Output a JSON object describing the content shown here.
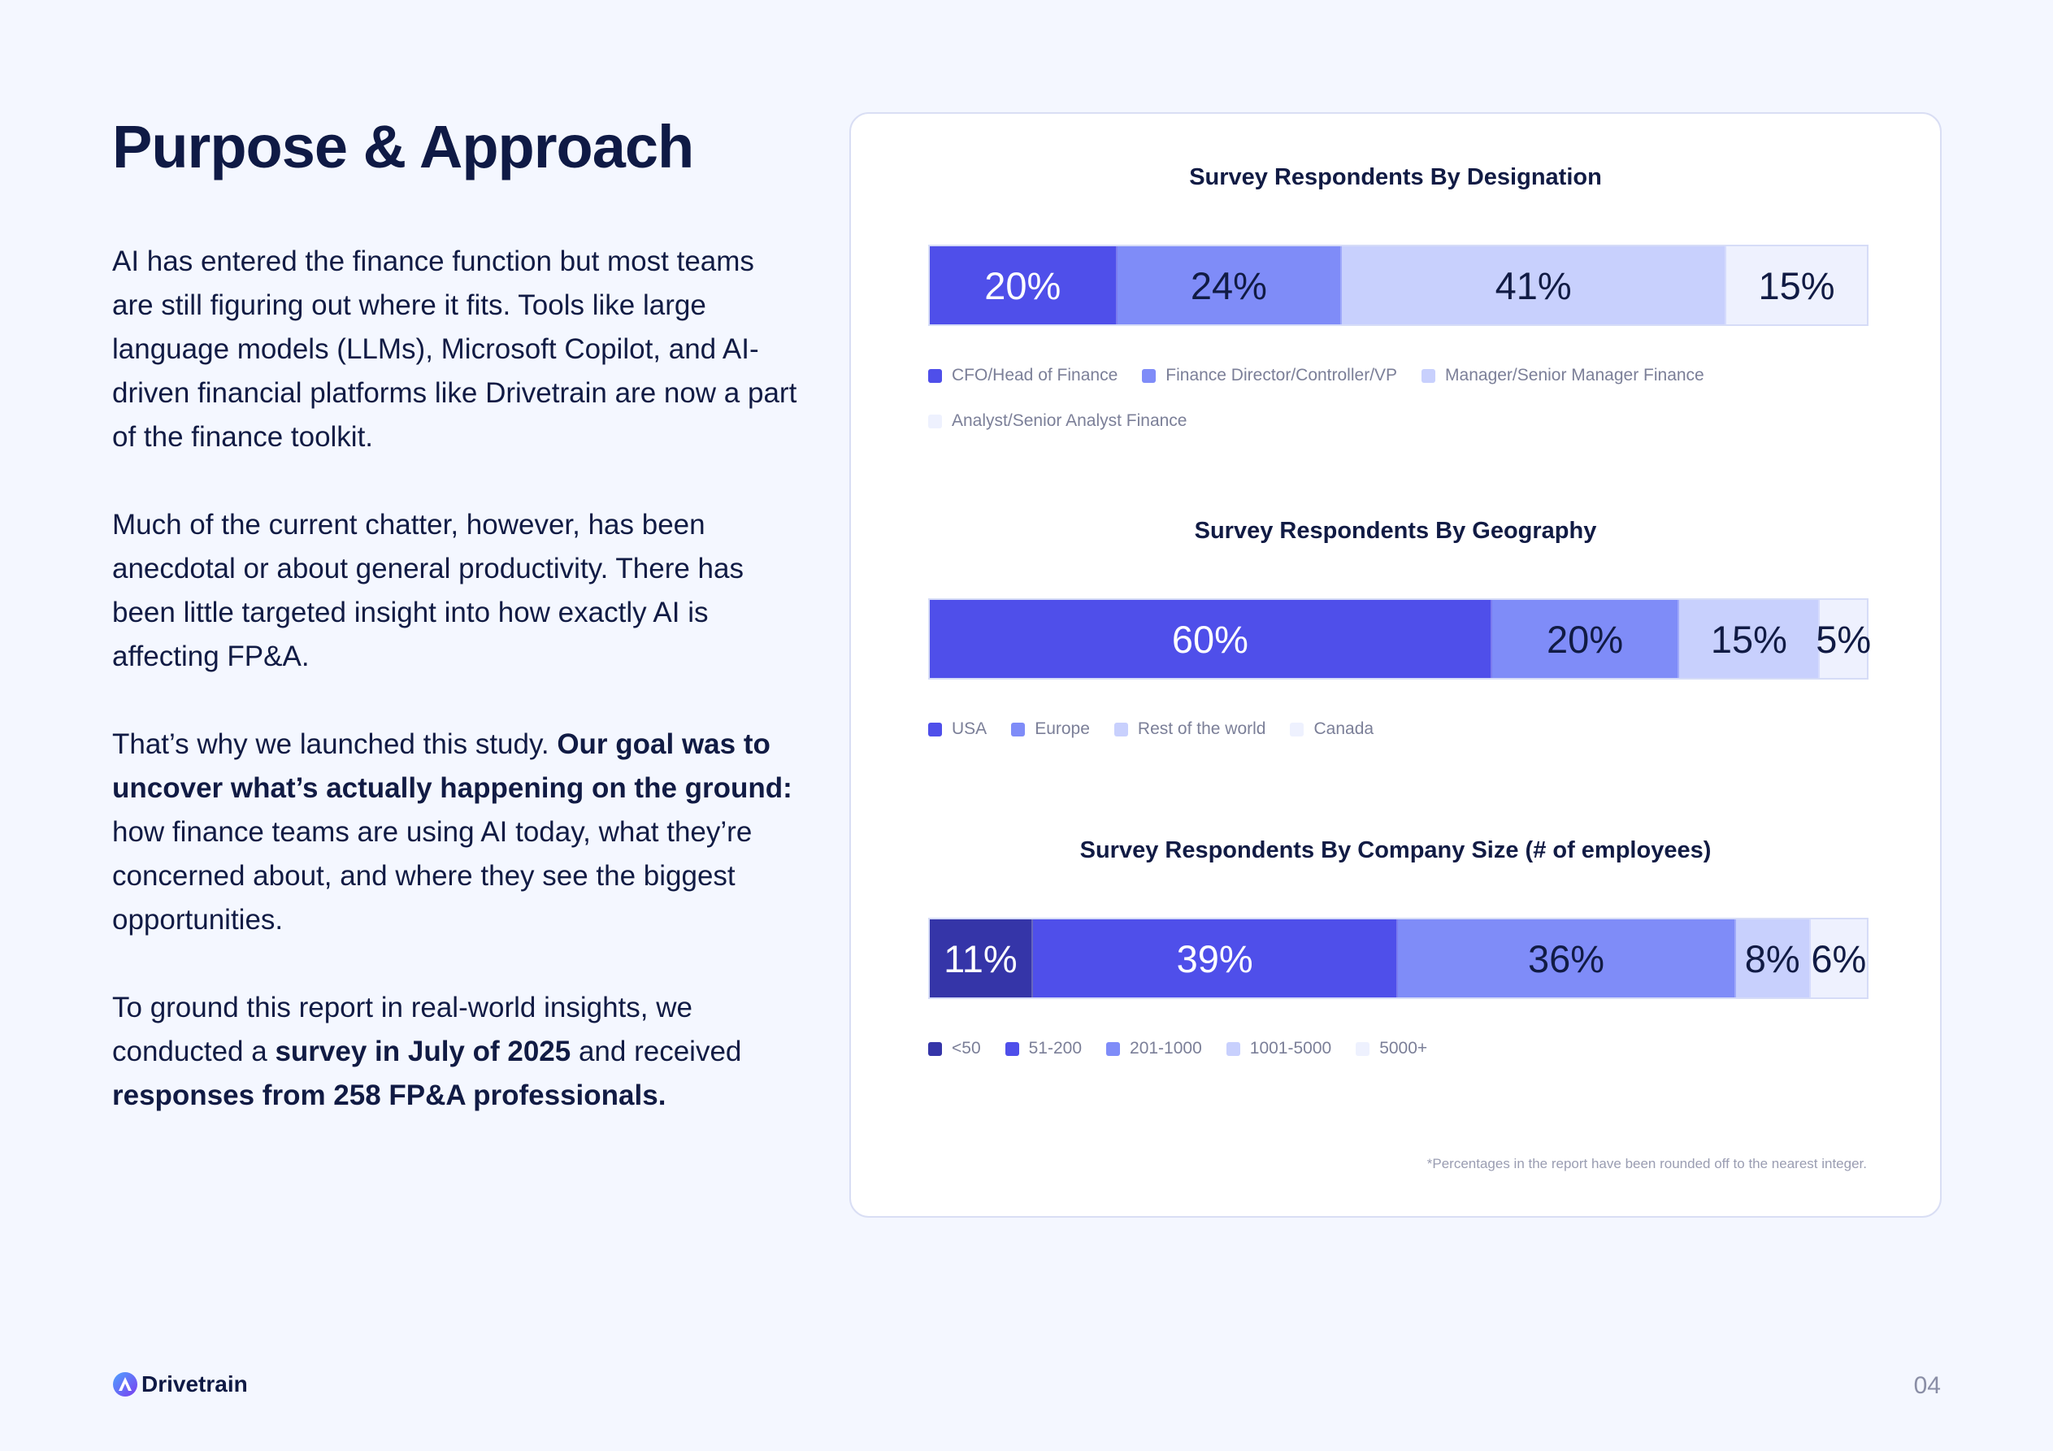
{
  "page": {
    "title": "Purpose & Approach",
    "paragraphs": [
      [
        {
          "t": "AI has entered the finance function but most teams are still figuring out where it fits. Tools like large language models (LLMs), Microsoft Copilot, and AI-driven financial platforms like Drivetrain are now a part of the finance toolkit.",
          "b": false
        }
      ],
      [
        {
          "t": "Much of the current chatter, however, has been anecdotal or about general productivity. There has been little targeted insight into how exactly AI is affecting FP&A.",
          "b": false
        }
      ],
      [
        {
          "t": "That’s why we launched this study. ",
          "b": false
        },
        {
          "t": "Our goal was to uncover what’s actually happening on the ground:",
          "b": true
        },
        {
          "t": " how finance teams are using AI today, what they’re concerned about, and where they see the biggest opportunities.",
          "b": false
        }
      ],
      [
        {
          "t": "To ground this report in real-world insights, we conducted a ",
          "b": false
        },
        {
          "t": "survey in July of 2025",
          "b": true
        },
        {
          "t": " and received ",
          "b": false
        },
        {
          "t": "responses from 258 FP&A professionals.",
          "b": true
        }
      ]
    ],
    "footnote": "*Percentages in the report have been rounded off to the nearest integer.",
    "logo_text": "Drivetrain",
    "page_number": "04"
  },
  "chart_data": [
    {
      "type": "bar",
      "stacked": "100%",
      "title": "Survey Respondents By Designation",
      "categories": [
        "CFO/Head of Finance",
        "Finance Director/Controller/VP",
        "Manager/Senior Manager Finance",
        "Analyst/Senior Analyst Finance"
      ],
      "values": [
        20,
        24,
        41,
        15
      ],
      "labels": [
        "20%",
        "24%",
        "41%",
        "15%"
      ],
      "colors": [
        "#4f4fea",
        "#7f8cf8",
        "#c8d0fd",
        "#eef1fe"
      ],
      "text_colors": [
        "#ffffff",
        "#111b44",
        "#111b44",
        "#111b44"
      ],
      "legend": "bottom-left"
    },
    {
      "type": "bar",
      "stacked": "100%",
      "title": "Survey Respondents By Geography",
      "categories": [
        "USA",
        "Europe",
        "Rest of the world",
        "Canada"
      ],
      "values": [
        60,
        20,
        15,
        5
      ],
      "labels": [
        "60%",
        "20%",
        "15%",
        "5%"
      ],
      "colors": [
        "#4f4fea",
        "#7f8cf8",
        "#c8d0fd",
        "#eef1fe"
      ],
      "text_colors": [
        "#ffffff",
        "#111b44",
        "#111b44",
        "#111b44"
      ],
      "legend": "bottom-left"
    },
    {
      "type": "bar",
      "stacked": "100%",
      "title": "Survey Respondents By Company Size (# of employees)",
      "categories": [
        "<50",
        "51-200",
        "201-1000",
        "1001-5000",
        "5000+"
      ],
      "values": [
        11,
        39,
        36,
        8,
        6
      ],
      "labels": [
        "11%",
        "39%",
        "36%",
        "8%",
        "6%"
      ],
      "colors": [
        "#3535a8",
        "#4f4fea",
        "#7f8cf8",
        "#c8d0fd",
        "#eef1fe"
      ],
      "text_colors": [
        "#ffffff",
        "#ffffff",
        "#111b44",
        "#111b44",
        "#111b44"
      ],
      "legend": "bottom-left"
    }
  ]
}
